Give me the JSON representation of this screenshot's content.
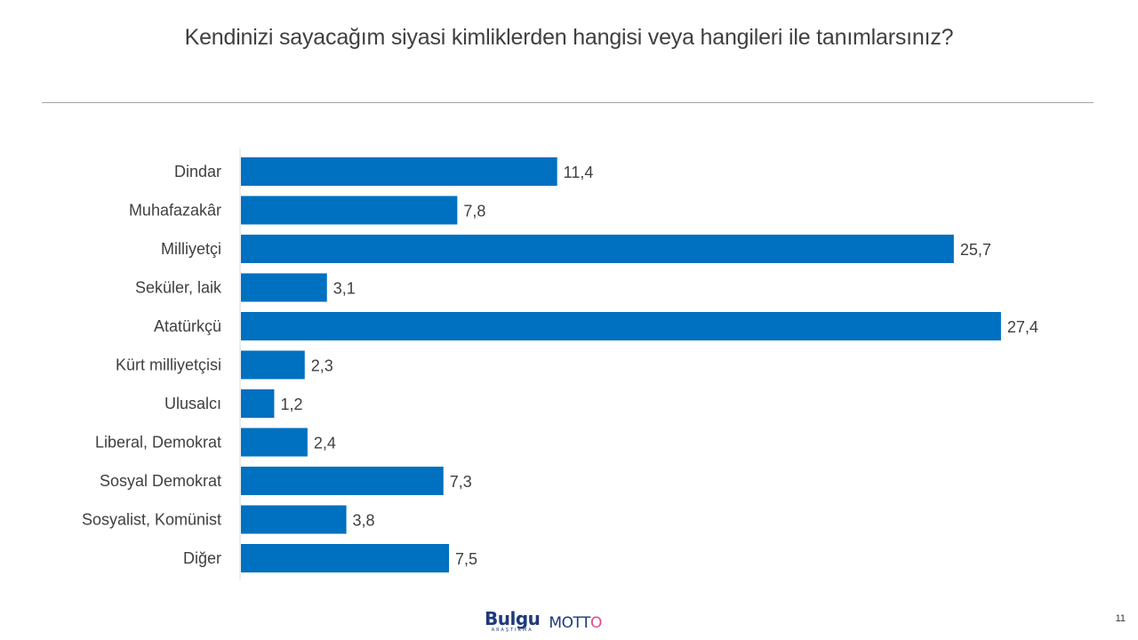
{
  "page": {
    "title": "Kendinizi sayacağım siyasi kimliklerden hangisi veya hangileri ile tanımlarsınız?",
    "page_number": "11"
  },
  "logos": {
    "bulgu_main": "Bulgu",
    "bulgu_sub": "ARAŞTIRMA",
    "motto_parts": [
      "MOT",
      "T",
      "O"
    ]
  },
  "colors": {
    "bar": "#0070c0",
    "axis": "#d9d9d9"
  },
  "chart_data": {
    "type": "bar",
    "orientation": "horizontal",
    "title": "",
    "xlabel": "",
    "ylabel": "",
    "categories": [
      "Dindar",
      "Muhafazakâr",
      "Milliyetçi",
      "Seküler, laik",
      "Atatürkçü",
      "Kürt milliyetçisi",
      "Ulusalcı",
      "Liberal, Demokrat",
      "Sosyal Demokrat",
      "Sosyalist, Komünist",
      "Diğer"
    ],
    "values": [
      11.4,
      7.8,
      25.7,
      3.1,
      27.4,
      2.3,
      1.2,
      2.4,
      7.3,
      3.8,
      7.5
    ],
    "value_labels": [
      "11,4",
      "7,8",
      "25,7",
      "3,1",
      "27,4",
      "2,3",
      "1,2",
      "2,4",
      "7,3",
      "3,8",
      "7,5"
    ],
    "grid": false,
    "legend": "none"
  }
}
